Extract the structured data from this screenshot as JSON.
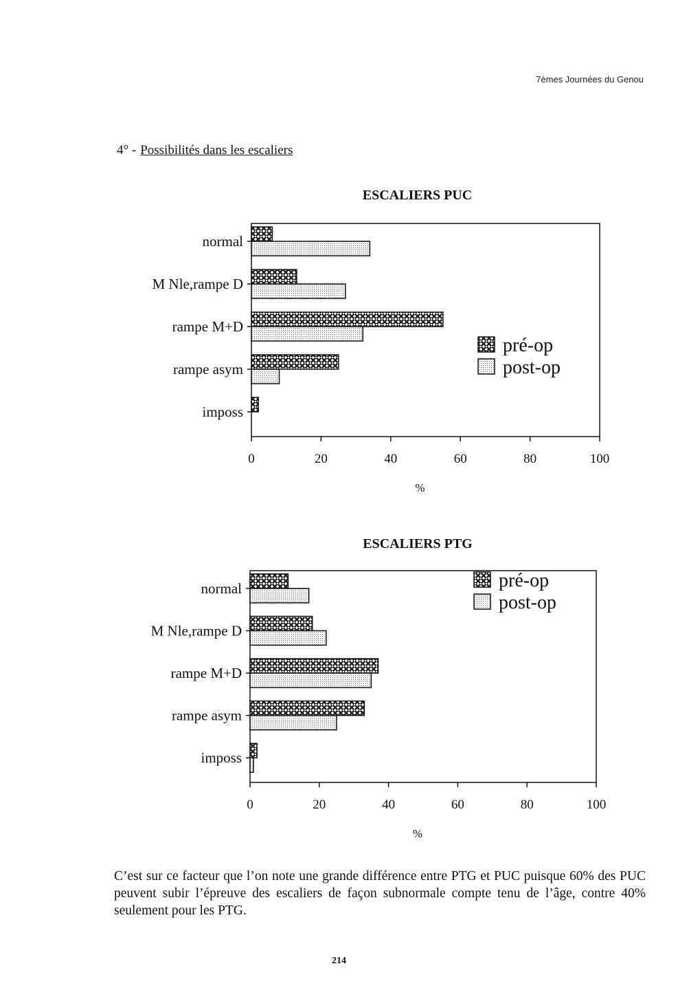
{
  "header": {
    "running_title": "7èmes Journées du Genou"
  },
  "section": {
    "number": "4° -",
    "title": "Possibilités dans les escaliers"
  },
  "chart_data": [
    {
      "type": "bar",
      "orientation": "horizontal",
      "title": "ESCALIERS PUC",
      "xlabel": "%",
      "ylabel": "",
      "xlim": [
        0,
        100
      ],
      "xticks": [
        "0",
        "20",
        "40",
        "60",
        "80",
        "100"
      ],
      "categories": [
        "normal",
        "M Nle,rampe D",
        "rampe M+D",
        "rampe asym",
        "imposs"
      ],
      "series": [
        {
          "name": "pré-op",
          "values": [
            6,
            13,
            55,
            25,
            2
          ],
          "pattern": "crosshatch",
          "color": "#222222"
        },
        {
          "name": "post-op",
          "values": [
            34,
            27,
            32,
            8,
            0
          ],
          "pattern": "dots",
          "color": "#e8e8e8"
        }
      ],
      "legend_position": "right-middle",
      "grid": false
    },
    {
      "type": "bar",
      "orientation": "horizontal",
      "title": "ESCALIERS PTG",
      "xlabel": "%",
      "ylabel": "",
      "xlim": [
        0,
        100
      ],
      "xticks": [
        "0",
        "20",
        "40",
        "60",
        "80",
        "100"
      ],
      "categories": [
        "normal",
        "M Nle,rampe D",
        "rampe M+D",
        "rampe asym",
        "imposs"
      ],
      "series": [
        {
          "name": "pré-op",
          "values": [
            11,
            18,
            37,
            33,
            2
          ],
          "pattern": "crosshatch",
          "color": "#222222"
        },
        {
          "name": "post-op",
          "values": [
            17,
            22,
            35,
            25,
            1
          ],
          "pattern": "dots",
          "color": "#e8e8e8"
        }
      ],
      "legend_position": "top-right",
      "grid": false
    }
  ],
  "body_text": "C’est sur ce facteur que l’on note une grande différence entre PTG et PUC puisque 60% des PUC peuvent subir l’épreuve des escaliers de façon subnormale compte tenu de l’âge, contre 40% seulement pour les PTG.",
  "page_number": "214"
}
